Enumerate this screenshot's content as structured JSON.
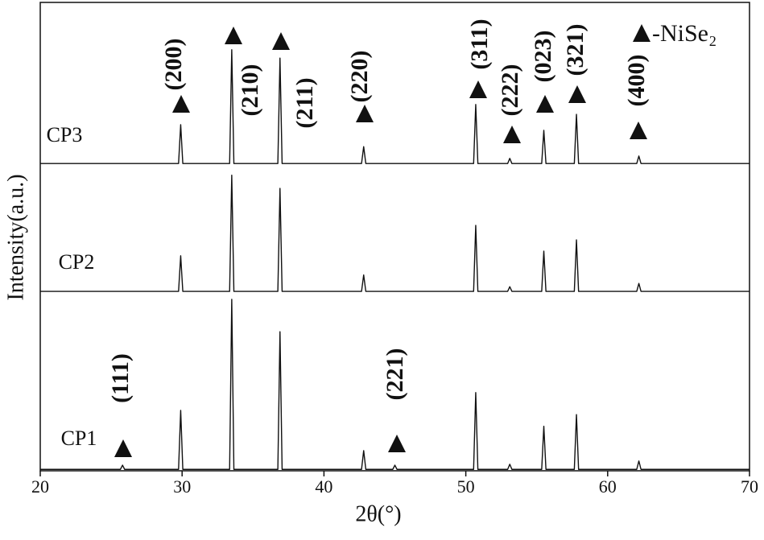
{
  "chart_data": {
    "type": "line",
    "xlabel": "2θ(°)",
    "ylabel": "Intensity(a.u.)",
    "x": [
      20,
      25.65,
      25.8,
      25.95,
      29.75,
      29.9,
      30.05,
      33.35,
      33.5,
      33.65,
      36.75,
      36.9,
      37.05,
      42.65,
      42.8,
      42.95,
      44.85,
      45,
      45.15,
      50.55,
      50.7,
      50.85,
      52.95,
      53.1,
      53.25,
      55.35,
      55.5,
      55.65,
      57.65,
      57.8,
      57.95,
      62.05,
      62.2,
      62.35,
      70
    ],
    "series": [
      {
        "name": "CP1",
        "color": "#111111",
        "values": [
          0.3,
          0.3,
          1.2,
          0.3,
          0.3,
          12.9,
          0.3,
          0.3,
          36.6,
          0.3,
          0.3,
          29.7,
          0.3,
          0.3,
          4.3,
          0.3,
          0.3,
          1.2,
          0.3,
          0.3,
          16.7,
          0.3,
          0.3,
          1.4,
          0.3,
          0.3,
          9.5,
          0.3,
          0.3,
          12.0,
          0.3,
          0.3,
          2.1,
          0.3,
          0.3
        ]
      },
      {
        "name": "CP2",
        "color": "#111111",
        "values": [
          38.3,
          38.3,
          38.3,
          38.3,
          38.3,
          45.9,
          38.3,
          38.3,
          63.1,
          38.3,
          38.3,
          60.3,
          38.3,
          38.3,
          41.8,
          38.3,
          38.3,
          38.3,
          38.3,
          38.3,
          52.4,
          38.3,
          38.3,
          39.3,
          38.3,
          38.3,
          46.9,
          38.3,
          38.3,
          49.3,
          38.3,
          38.3,
          40.0,
          38.3,
          38.3
        ]
      },
      {
        "name": "CP3",
        "color": "#111111",
        "values": [
          65.6,
          65.6,
          65.6,
          65.6,
          65.6,
          73.9,
          65.6,
          65.6,
          89.9,
          65.6,
          65.6,
          88.1,
          65.6,
          65.6,
          69.2,
          65.6,
          65.6,
          65.6,
          65.6,
          65.6,
          78.2,
          65.6,
          65.6,
          66.7,
          65.6,
          65.6,
          72.7,
          65.6,
          65.6,
          76.1,
          65.6,
          65.6,
          67.2,
          65.6,
          65.6
        ]
      }
    ],
    "annotations": [
      "(111)",
      "(221)",
      "(200)",
      "(210)",
      "(211)",
      "(220)",
      "(311)",
      "(222)",
      "(023)",
      "(321)",
      "(400)"
    ],
    "legend_label": "-NiSe₂",
    "xlim": [
      20,
      70
    ],
    "xticks": [
      20,
      30,
      40,
      50,
      60,
      70
    ],
    "ylim": [
      0,
      100
    ]
  }
}
